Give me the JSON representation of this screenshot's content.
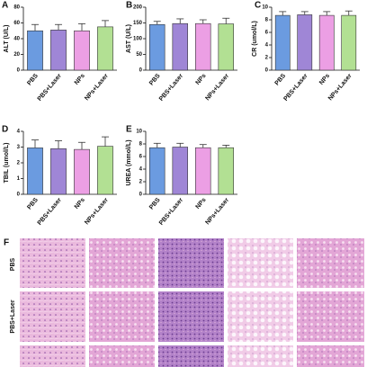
{
  "chart_data": [
    {
      "type": "bar",
      "label": "A",
      "ylabel": "ALT (U/L)",
      "categories": [
        "PBS",
        "PBS+Laser",
        "NPs",
        "NPs+Laser"
      ],
      "values": [
        50,
        51,
        50,
        55
      ],
      "errors": [
        8,
        7,
        9,
        8
      ],
      "colors": [
        "#6b9be0",
        "#9f86d6",
        "#ec9fe4",
        "#b2e093"
      ],
      "ylim": [
        0,
        80
      ],
      "yticks": [
        0,
        20,
        40,
        60,
        80
      ]
    },
    {
      "type": "bar",
      "label": "B",
      "ylabel": "AST (U/L)",
      "categories": [
        "PBS",
        "PBS+Laser",
        "NPs",
        "NPs+Laser"
      ],
      "values": [
        145,
        148,
        148,
        147
      ],
      "errors": [
        10,
        15,
        12,
        18
      ],
      "colors": [
        "#6b9be0",
        "#9f86d6",
        "#ec9fe4",
        "#b2e093"
      ],
      "ylim": [
        0,
        200
      ],
      "yticks": [
        0,
        50,
        100,
        150,
        200
      ]
    },
    {
      "type": "bar",
      "label": "C",
      "ylabel": "CR (umol/L)",
      "categories": [
        "PBS",
        "PBS+Laser",
        "NPs",
        "NPs+Laser"
      ],
      "values": [
        8.7,
        8.8,
        8.7,
        8.7
      ],
      "errors": [
        0.6,
        0.5,
        0.6,
        0.7
      ],
      "colors": [
        "#6b9be0",
        "#9f86d6",
        "#ec9fe4",
        "#b2e093"
      ],
      "ylim": [
        0,
        10
      ],
      "yticks": [
        0,
        2,
        4,
        6,
        8,
        10
      ]
    },
    {
      "type": "bar",
      "label": "D",
      "ylabel": "TBIL (umol/L)",
      "categories": [
        "PBS",
        "PBS+Laser",
        "NPs",
        "NPs+Laser"
      ],
      "values": [
        2.95,
        2.9,
        2.85,
        3.05
      ],
      "errors": [
        0.5,
        0.5,
        0.45,
        0.6
      ],
      "colors": [
        "#6b9be0",
        "#9f86d6",
        "#ec9fe4",
        "#b2e093"
      ],
      "ylim": [
        0,
        4
      ],
      "yticks": [
        0,
        1,
        2,
        3,
        4
      ]
    },
    {
      "type": "bar",
      "label": "E",
      "ylabel": "UREA (mmol/L)",
      "categories": [
        "PBS",
        "PBS+Laser",
        "NPs",
        "NPs+Laser"
      ],
      "values": [
        7.4,
        7.5,
        7.4,
        7.4
      ],
      "errors": [
        0.7,
        0.6,
        0.5,
        0.4
      ],
      "colors": [
        "#6b9be0",
        "#9f86d6",
        "#ec9fe4",
        "#b2e093"
      ],
      "ylim": [
        0,
        10
      ],
      "yticks": [
        0,
        2,
        4,
        6,
        8,
        10
      ]
    }
  ],
  "histology": {
    "label": "F",
    "rows": [
      "PBS",
      "PBS+Laser"
    ]
  }
}
